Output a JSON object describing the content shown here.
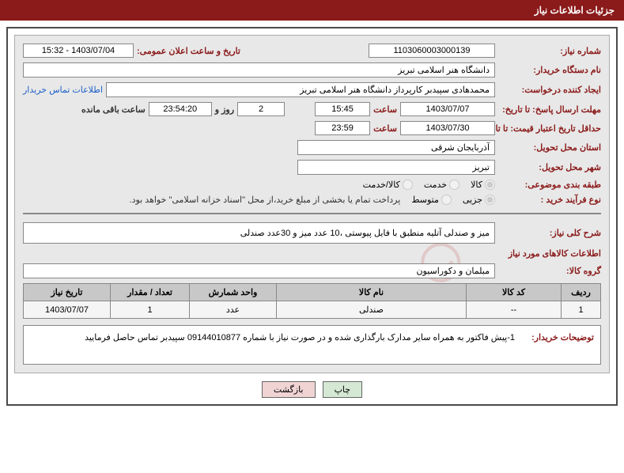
{
  "header": {
    "title": "جزئیات اطلاعات نیاز"
  },
  "fields": {
    "need_number_label": "شماره نیاز:",
    "need_number": "1103060003000139",
    "announce_label": "تاریخ و ساعت اعلان عمومی:",
    "announce_value": "1403/07/04 - 15:32",
    "buyer_org_label": "نام دستگاه خریدار:",
    "buyer_org": "دانشگاه هنر اسلامی تبریز",
    "requester_label": "ایجاد کننده درخواست:",
    "requester": "محمدهادی سپیدبر کارپرداز دانشگاه هنر اسلامی تبریز",
    "contact_link": "اطلاعات تماس خریدار",
    "deadline_label": "مهلت ارسال پاسخ: تا تاریخ:",
    "deadline_date": "1403/07/07",
    "time_label": "ساعت",
    "deadline_time": "15:45",
    "days_value": "2",
    "days_and": "روز و",
    "countdown": "23:54:20",
    "remaining": "ساعت باقی مانده",
    "validity_label": "حداقل تاریخ اعتبار قیمت: تا تاریخ:",
    "validity_date": "1403/07/30",
    "validity_time": "23:59",
    "province_label": "استان محل تحویل:",
    "province": "آذربایجان شرقی",
    "city_label": "شهر محل تحویل:",
    "city": "تبریز",
    "category_label": "طبقه بندی موضوعی:",
    "cat_goods": "کالا",
    "cat_service": "خدمت",
    "cat_both": "کالا/خدمت",
    "process_label": "نوع فرآیند خرید :",
    "proc_partial": "جزیی",
    "proc_medium": "متوسط",
    "process_note": "پرداخت تمام یا بخشی از مبلغ خرید،از محل \"اسناد خزانه اسلامی\" خواهد بود.",
    "summary_label": "شرح کلی نیاز:",
    "summary": "میز و صندلی آتلیه منطبق با فایل پیوستی ،10 عدد میز و 30عدد صندلی",
    "goods_info_title": "اطلاعات کالاهای مورد نیاز",
    "group_label": "گروه کالا:",
    "group_value": "مبلمان و دکوراسیون",
    "buyer_desc_label": "توضیحات خریدار:",
    "buyer_desc": "1-پیش فاکتور به همراه سایر مدارک بارگذاری شده و در صورت نیاز با شماره 09144010877 سپیدبر تماس حاصل فرمایید"
  },
  "table": {
    "headers": {
      "row": "ردیف",
      "code": "کد کالا",
      "name": "نام کالا",
      "unit": "واحد شمارش",
      "qty": "تعداد / مقدار",
      "date": "تاریخ نیاز"
    },
    "rows": [
      {
        "row": "1",
        "code": "--",
        "name": "صندلی",
        "unit": "عدد",
        "qty": "1",
        "date": "1403/07/07"
      }
    ]
  },
  "buttons": {
    "print": "چاپ",
    "back": "بازگشت"
  },
  "watermark": "AriaTender.net"
}
